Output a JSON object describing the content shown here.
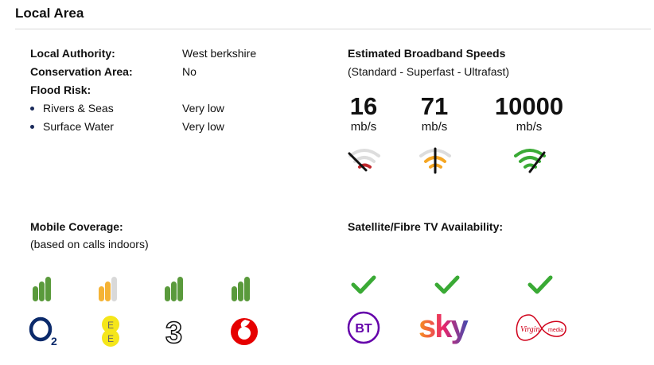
{
  "header": {
    "title": "Local Area"
  },
  "info": {
    "local_authority": {
      "label": "Local Authority:",
      "value": "West berkshire"
    },
    "conservation_area": {
      "label": "Conservation Area:",
      "value": "No"
    },
    "flood_risk": {
      "label": "Flood Risk:",
      "items": [
        {
          "label": "Rivers & Seas",
          "value": "Very low"
        },
        {
          "label": "Surface Water",
          "value": "Very low"
        }
      ]
    }
  },
  "broadband": {
    "title": "Estimated Broadband Speeds",
    "subtitle": "(Standard - Superfast - Ultrafast)",
    "speeds": [
      {
        "value": "16",
        "unit": "mb/s",
        "level": "low",
        "color": "#c0272d"
      },
      {
        "value": "71",
        "unit": "mb/s",
        "level": "medium",
        "color": "#f5a623"
      },
      {
        "value": "10000",
        "unit": "mb/s",
        "level": "high",
        "color": "#3aaa35"
      }
    ]
  },
  "mobile": {
    "title": "Mobile Coverage:",
    "subtitle": "(based on calls indoors)",
    "providers": [
      {
        "name": "O2",
        "bars": 3,
        "color": "#5a9a3c"
      },
      {
        "name": "EE",
        "bars": 2,
        "color": "#f5b335"
      },
      {
        "name": "Three",
        "bars": 3,
        "color": "#5a9a3c"
      },
      {
        "name": "Vodafone",
        "bars": 3,
        "color": "#5a9a3c"
      }
    ]
  },
  "tv": {
    "title": "Satellite/Fibre TV Availability:",
    "providers": [
      {
        "name": "BT",
        "available": true
      },
      {
        "name": "sky",
        "available": true
      },
      {
        "name": "Virgin media",
        "available": true
      }
    ]
  }
}
